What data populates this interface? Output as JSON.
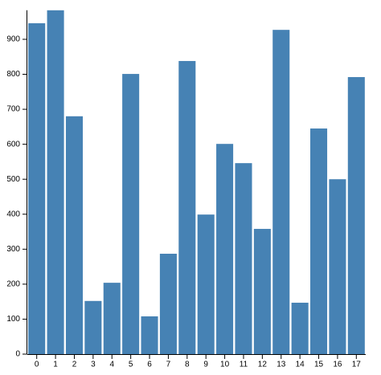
{
  "chart_data": {
    "type": "bar",
    "categories": [
      "0",
      "1",
      "2",
      "3",
      "4",
      "5",
      "6",
      "7",
      "8",
      "9",
      "10",
      "11",
      "12",
      "13",
      "14",
      "15",
      "16",
      "17"
    ],
    "values": [
      946,
      983,
      680,
      152,
      204,
      801,
      108,
      287,
      838,
      399,
      601,
      546,
      358,
      927,
      147,
      645,
      500,
      792
    ],
    "color": "#4682b4",
    "ylim": [
      0,
      983
    ],
    "yticks": [
      0,
      100,
      200,
      300,
      400,
      500,
      600,
      700,
      800,
      900
    ]
  }
}
